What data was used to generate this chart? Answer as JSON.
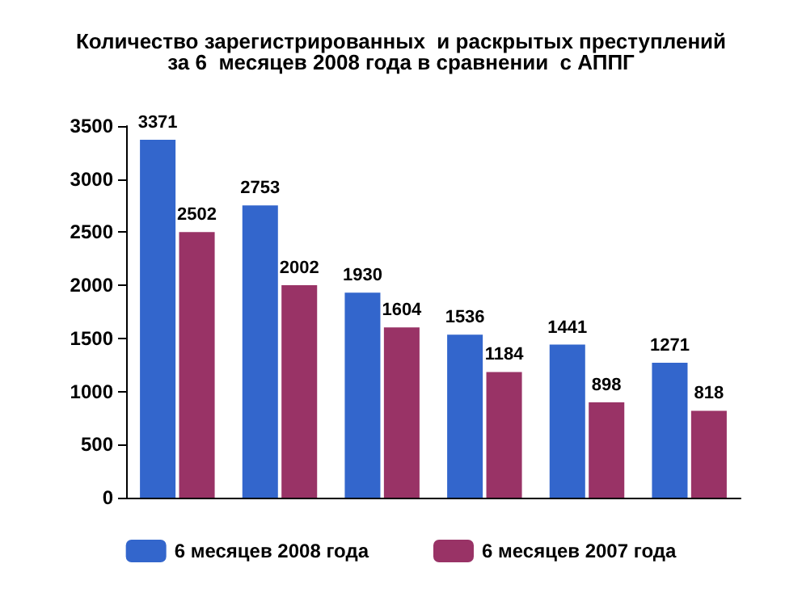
{
  "chart_data": {
    "type": "bar",
    "title": "Количество зарегистрированных  и раскрытых преступлений\nза 6  месяцев 2008 года в сравнении  с АППГ",
    "categories": [
      null,
      null,
      null,
      null,
      null,
      null
    ],
    "series": [
      {
        "name": "6 месяцев 2008 года",
        "color": "#3366cc",
        "values": [
          3371,
          2753,
          1930,
          1536,
          1441,
          1271
        ]
      },
      {
        "name": "6 месяцев 2007 года",
        "color": "#993366",
        "values": [
          2502,
          2002,
          1604,
          1184,
          898,
          818
        ]
      }
    ],
    "ylim": [
      0,
      3500
    ],
    "yticks": [
      0,
      500,
      1000,
      1500,
      2000,
      2500,
      3000,
      3500
    ],
    "data_labels": true,
    "grid": false,
    "legend": "bottom",
    "tick_labels": "y"
  }
}
